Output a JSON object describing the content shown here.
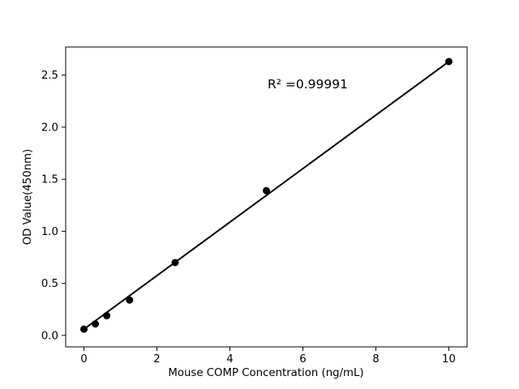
{
  "figure": {
    "background": "#ffffff",
    "foreground": "#000000"
  },
  "chart_data": {
    "type": "scatter",
    "xlabel": "Mouse COMP Concentration (ng/mL)",
    "ylabel": "OD Value(450nm)",
    "annotation": "R² =0.99991",
    "r_squared": 0.99991,
    "x": [
      0,
      0.3125,
      0.625,
      1.25,
      2.5,
      5,
      10
    ],
    "y": [
      0.06,
      0.11,
      0.19,
      0.34,
      0.7,
      1.39,
      2.63
    ],
    "fit_line": {
      "x": [
        0,
        10
      ],
      "y": [
        0.06,
        2.63
      ]
    },
    "xlim": [
      -0.5,
      10.5
    ],
    "ylim": [
      -0.11,
      2.77
    ],
    "xticks": [
      {
        "v": 0,
        "label": "0"
      },
      {
        "v": 2,
        "label": "2"
      },
      {
        "v": 4,
        "label": "4"
      },
      {
        "v": 6,
        "label": "6"
      },
      {
        "v": 8,
        "label": "8"
      },
      {
        "v": 10,
        "label": "10"
      }
    ],
    "yticks": [
      {
        "v": 0.0,
        "label": "0.0"
      },
      {
        "v": 0.5,
        "label": "0.5"
      },
      {
        "v": 1.0,
        "label": "1.0"
      },
      {
        "v": 1.5,
        "label": "1.5"
      },
      {
        "v": 2.0,
        "label": "2.0"
      },
      {
        "v": 2.5,
        "label": "2.5"
      }
    ],
    "grid": false,
    "legend": "none",
    "marker": "circle",
    "line_color": "#000000",
    "marker_color": "#000000"
  }
}
